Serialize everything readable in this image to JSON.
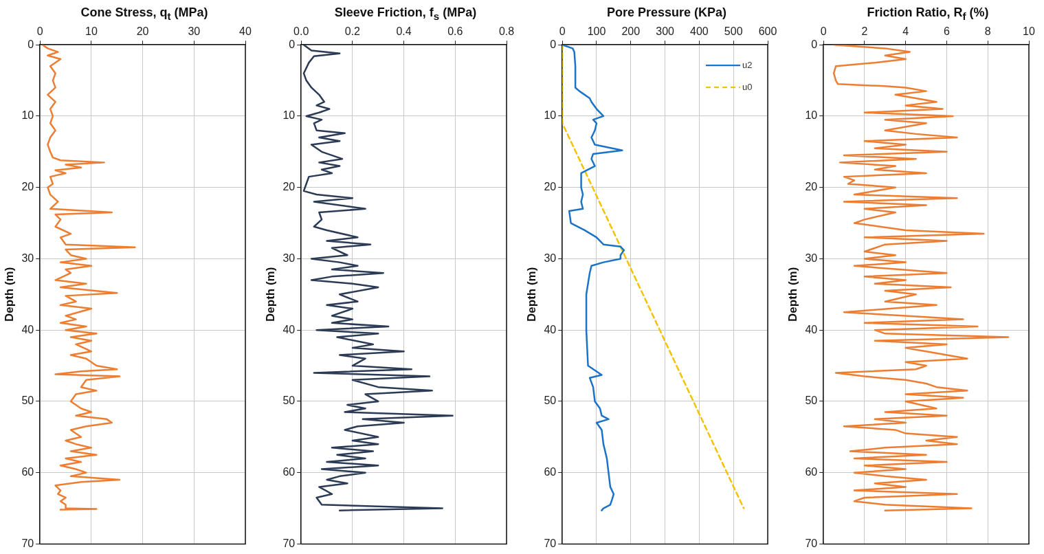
{
  "chart_data": [
    {
      "type": "line",
      "title": "Cone Stress, q$_{t}$  (MPa)",
      "ylabel": "Depth (m)",
      "xlim": [
        0,
        40
      ],
      "xticks": [
        0,
        10,
        20,
        30,
        40
      ],
      "ylim": [
        70,
        0
      ],
      "yticks": [
        0,
        10,
        20,
        30,
        40,
        50,
        60,
        70
      ],
      "grid": true,
      "marker": "none",
      "line_style": "solid",
      "series": [
        {
          "color": "#ed7d31",
          "x": [
            0.5,
            1.5,
            3.5,
            1.5,
            4,
            2,
            3,
            2.5,
            3,
            1.5,
            3,
            2,
            2.5,
            2,
            3,
            2,
            1.5,
            2,
            2.5,
            4,
            12.5,
            5,
            8,
            3,
            5,
            2,
            2.5,
            1.5,
            2,
            3.5,
            2,
            14,
            3,
            4,
            3,
            6,
            4,
            5,
            18.5,
            5,
            6,
            9,
            4,
            10,
            5,
            6,
            3,
            9,
            4,
            15,
            5,
            7,
            4,
            10,
            5,
            7,
            4,
            9,
            5,
            11,
            6,
            10,
            7,
            10,
            6,
            9,
            11,
            15,
            8,
            3,
            15.5,
            9,
            8,
            11,
            7,
            6,
            8,
            10,
            7,
            13,
            14,
            9,
            6,
            8,
            5,
            7,
            10,
            6,
            11,
            5,
            8,
            4,
            7,
            9,
            6,
            15.5,
            8,
            3,
            4,
            3.5,
            5,
            4,
            5,
            5,
            11,
            4
          ],
          "values": [
            0,
            0.5,
            1,
            1.5,
            2,
            3,
            4,
            5,
            6,
            7,
            8,
            9,
            10,
            11,
            12,
            13,
            14,
            15,
            15.8,
            16.2,
            16.5,
            16.8,
            17.2,
            17.6,
            18,
            18.5,
            19.5,
            20,
            21,
            22,
            23,
            23.5,
            23.8,
            24.5,
            25.5,
            26.5,
            27,
            28,
            28.4,
            28.7,
            29.5,
            30,
            30.5,
            31,
            31.5,
            32,
            33,
            33.5,
            34,
            34.8,
            35.2,
            36,
            36.5,
            37,
            38,
            38.5,
            39,
            39.5,
            40,
            40.5,
            41,
            41.5,
            42,
            43,
            43.5,
            44,
            45,
            45.5,
            45.8,
            46.2,
            46.5,
            47,
            48,
            48.5,
            49,
            50,
            51,
            51.5,
            52,
            52.5,
            53,
            53.5,
            54,
            55,
            55.5,
            56,
            56.5,
            57,
            57.5,
            58,
            58.5,
            59,
            59.5,
            60,
            60.5,
            61,
            61.3,
            61.8,
            62.5,
            63,
            63.5,
            64,
            64.5,
            65,
            65.1,
            65.2
          ]
        }
      ]
    },
    {
      "type": "line",
      "title": "Sleeve Friction, f$_{s}$  (MPa)",
      "ylabel": "Depth (m)",
      "xlim": [
        0,
        0.8
      ],
      "xticks": [
        {
          "value": 0,
          "label": "0.0"
        },
        0.2,
        0.4,
        0.6,
        0.8
      ],
      "ylim": [
        70,
        0
      ],
      "yticks": [
        0,
        10,
        20,
        30,
        40,
        50,
        60,
        70
      ],
      "grid": true,
      "marker": "none",
      "line_style": "solid",
      "series": [
        {
          "color": "#2b3a55",
          "x": [
            0.01,
            0.04,
            0.15,
            0.05,
            0.03,
            0.01,
            0.02,
            0.04,
            0.07,
            0.09,
            0.06,
            0.11,
            0.07,
            0.02,
            0.08,
            0.05,
            0.06,
            0.17,
            0.07,
            0.15,
            0.04,
            0.08,
            0.16,
            0.07,
            0.15,
            0.08,
            0.12,
            0.03,
            0.02,
            0.01,
            0.06,
            0.2,
            0.05,
            0.25,
            0.07,
            0.08,
            0.05,
            0.1,
            0.22,
            0.1,
            0.27,
            0.12,
            0.18,
            0.04,
            0.15,
            0.22,
            0.12,
            0.32,
            0.12,
            0.04,
            0.2,
            0.3,
            0.15,
            0.22,
            0.1,
            0.2,
            0.12,
            0.2,
            0.12,
            0.34,
            0.06,
            0.3,
            0.14,
            0.28,
            0.2,
            0.4,
            0.15,
            0.25,
            0.2,
            0.43,
            0.05,
            0.5,
            0.2,
            0.3,
            0.51,
            0.25,
            0.3,
            0.18,
            0.25,
            0.17,
            0.59,
            0.24,
            0.4,
            0.22,
            0.17,
            0.3,
            0.2,
            0.3,
            0.12,
            0.28,
            0.14,
            0.25,
            0.1,
            0.3,
            0.08,
            0.25,
            0.15,
            0.1,
            0.18,
            0.07,
            0.12,
            0.06,
            0.08,
            0.55,
            0.15
          ],
          "values": [
            0,
            0.8,
            1.2,
            1.6,
            2.5,
            4,
            5,
            6,
            7,
            8,
            8.5,
            9,
            9.5,
            10,
            10.5,
            11,
            12,
            12.4,
            13,
            13.5,
            14,
            15,
            16,
            16.5,
            17,
            17.5,
            18,
            18.5,
            19.5,
            20.5,
            21,
            21.5,
            22,
            23,
            23.5,
            24.5,
            25.5,
            26,
            27,
            27.5,
            28,
            28.5,
            29.5,
            30,
            30.5,
            31,
            31.5,
            32,
            32.5,
            33,
            33.5,
            34,
            35,
            36,
            36.5,
            37,
            38,
            38.5,
            39,
            39.5,
            40,
            40.5,
            41,
            42,
            42.5,
            43,
            43.5,
            44,
            45,
            45.5,
            46,
            46.5,
            47,
            48,
            48.5,
            49,
            50,
            50.5,
            51,
            51.5,
            52,
            52.5,
            53,
            53.5,
            54,
            55,
            55.5,
            56,
            56.5,
            57,
            57.5,
            58,
            58.5,
            59,
            59.5,
            60,
            60.5,
            61,
            61.5,
            62,
            63,
            63.5,
            64.5,
            65,
            65.3
          ]
        }
      ]
    },
    {
      "type": "line",
      "title": "Pore Pressure (KPa)",
      "ylabel": "Depth (m)",
      "xlim": [
        0,
        600
      ],
      "xticks": [
        0,
        100,
        200,
        300,
        400,
        500,
        600
      ],
      "ylim": [
        70,
        0
      ],
      "yticks": [
        0,
        10,
        20,
        30,
        40,
        50,
        60,
        70
      ],
      "grid": true,
      "marker": "none",
      "legend": "top right",
      "series": [
        {
          "name": "u2",
          "color": "#1a73c8",
          "line_style": "solid",
          "x": [
            0,
            30,
            35,
            38,
            38,
            50,
            80,
            85,
            100,
            120,
            90,
            100,
            95,
            85,
            95,
            175,
            90,
            85,
            95,
            55,
            55,
            60,
            55,
            60,
            20,
            25,
            65,
            100,
            120,
            170,
            180,
            170,
            170,
            120,
            85,
            80,
            70,
            70,
            75,
            115,
            80,
            90,
            95,
            110,
            115,
            135,
            100,
            115,
            120,
            130,
            135,
            140,
            150,
            145,
            140,
            120,
            115
          ],
          "values": [
            0,
            0.5,
            1,
            3,
            6,
            6.5,
            7.5,
            8,
            9,
            10,
            10.5,
            11,
            12,
            13,
            14,
            14.8,
            15.3,
            16,
            17,
            18,
            20,
            21,
            22,
            23,
            23.3,
            25,
            26,
            27,
            28,
            28.3,
            28.8,
            29.5,
            30,
            30.5,
            31,
            32,
            35,
            40,
            45,
            46.3,
            46.7,
            48,
            50,
            51,
            52,
            52.5,
            53,
            54,
            56,
            58,
            60,
            62,
            63,
            63.8,
            64.5,
            65,
            65.3
          ]
        },
        {
          "name": "u0",
          "color": "#f5c200",
          "line_style": "dashed",
          "x": [
            0,
            0,
            530
          ],
          "values": [
            0,
            11,
            65
          ]
        }
      ]
    },
    {
      "type": "line",
      "title": "Friction Ratio, R$_{f}$  (%)",
      "ylabel": "Depth (m)",
      "xlim": [
        0,
        10
      ],
      "xticks": [
        0,
        2,
        4,
        6,
        8,
        10
      ],
      "ylim": [
        70,
        0
      ],
      "yticks": [
        0,
        10,
        20,
        30,
        40,
        50,
        60,
        70
      ],
      "grid": true,
      "marker": "none",
      "line_style": "solid",
      "series": [
        {
          "color": "#ed7d31",
          "x": [
            0.5,
            3,
            4.2,
            3,
            4,
            2.5,
            0.6,
            0.5,
            0.6,
            0.7,
            3,
            4,
            5,
            3.5,
            5.5,
            4,
            5.8,
            2,
            6.3,
            3,
            5,
            3,
            4.5,
            6.5,
            2,
            4,
            2.5,
            6,
            1,
            4.5,
            0.8,
            3.5,
            2.5,
            5,
            1,
            1.5,
            1.2,
            3.5,
            1.5,
            6.5,
            1,
            5,
            2,
            3.5,
            2,
            1.5,
            4,
            7.8,
            2,
            6,
            3,
            2,
            3.5,
            2,
            4,
            1.5,
            6,
            2,
            4,
            2.5,
            6.2,
            3,
            4.5,
            3,
            5.5,
            1,
            4,
            6.8,
            2,
            7.5,
            2.5,
            3,
            9,
            2.5,
            6,
            4,
            5,
            7,
            4,
            5,
            4.5,
            0.6,
            2,
            4,
            5,
            5.5,
            7,
            4,
            6.8,
            4,
            5.5,
            3,
            6,
            2.5,
            4,
            1,
            3.5,
            4,
            6.5,
            5,
            6.5,
            3,
            1.3,
            5,
            1.5,
            6,
            2,
            4,
            1.5,
            3,
            5,
            2.5,
            4,
            1.5,
            6.5,
            2,
            1.5,
            3,
            7.2,
            3
          ],
          "values": [
            0,
            0.5,
            1,
            1.5,
            2,
            2.5,
            3,
            4,
            5,
            5.5,
            5.8,
            6,
            6.5,
            7,
            8,
            8.5,
            9,
            9.5,
            10,
            10.5,
            11,
            12,
            12.5,
            13,
            13.5,
            14,
            14.5,
            15,
            15.5,
            16,
            16.5,
            17,
            17.5,
            18,
            18.5,
            19,
            19.5,
            20,
            21,
            21.5,
            22,
            22.5,
            23,
            23.5,
            24.5,
            25,
            26,
            26.5,
            27,
            27.5,
            28,
            29,
            29.5,
            30,
            30.5,
            31,
            32,
            32.5,
            33,
            33.5,
            34,
            34.5,
            35,
            36,
            36.5,
            37.5,
            38,
            38.5,
            39,
            39.5,
            40,
            40.5,
            41,
            41.5,
            42,
            42.5,
            43,
            44,
            44.5,
            45,
            45.5,
            46,
            46.5,
            47,
            47.5,
            48,
            48.5,
            49,
            49.5,
            50,
            51,
            51.5,
            52,
            52.5,
            53,
            53.5,
            54,
            54.5,
            55,
            55.5,
            56,
            56.5,
            57,
            57.5,
            58,
            58.5,
            59,
            59.5,
            60,
            60.5,
            61,
            61.5,
            62,
            62.5,
            63,
            63.5,
            64,
            64.5,
            65,
            65.3
          ]
        }
      ]
    }
  ]
}
